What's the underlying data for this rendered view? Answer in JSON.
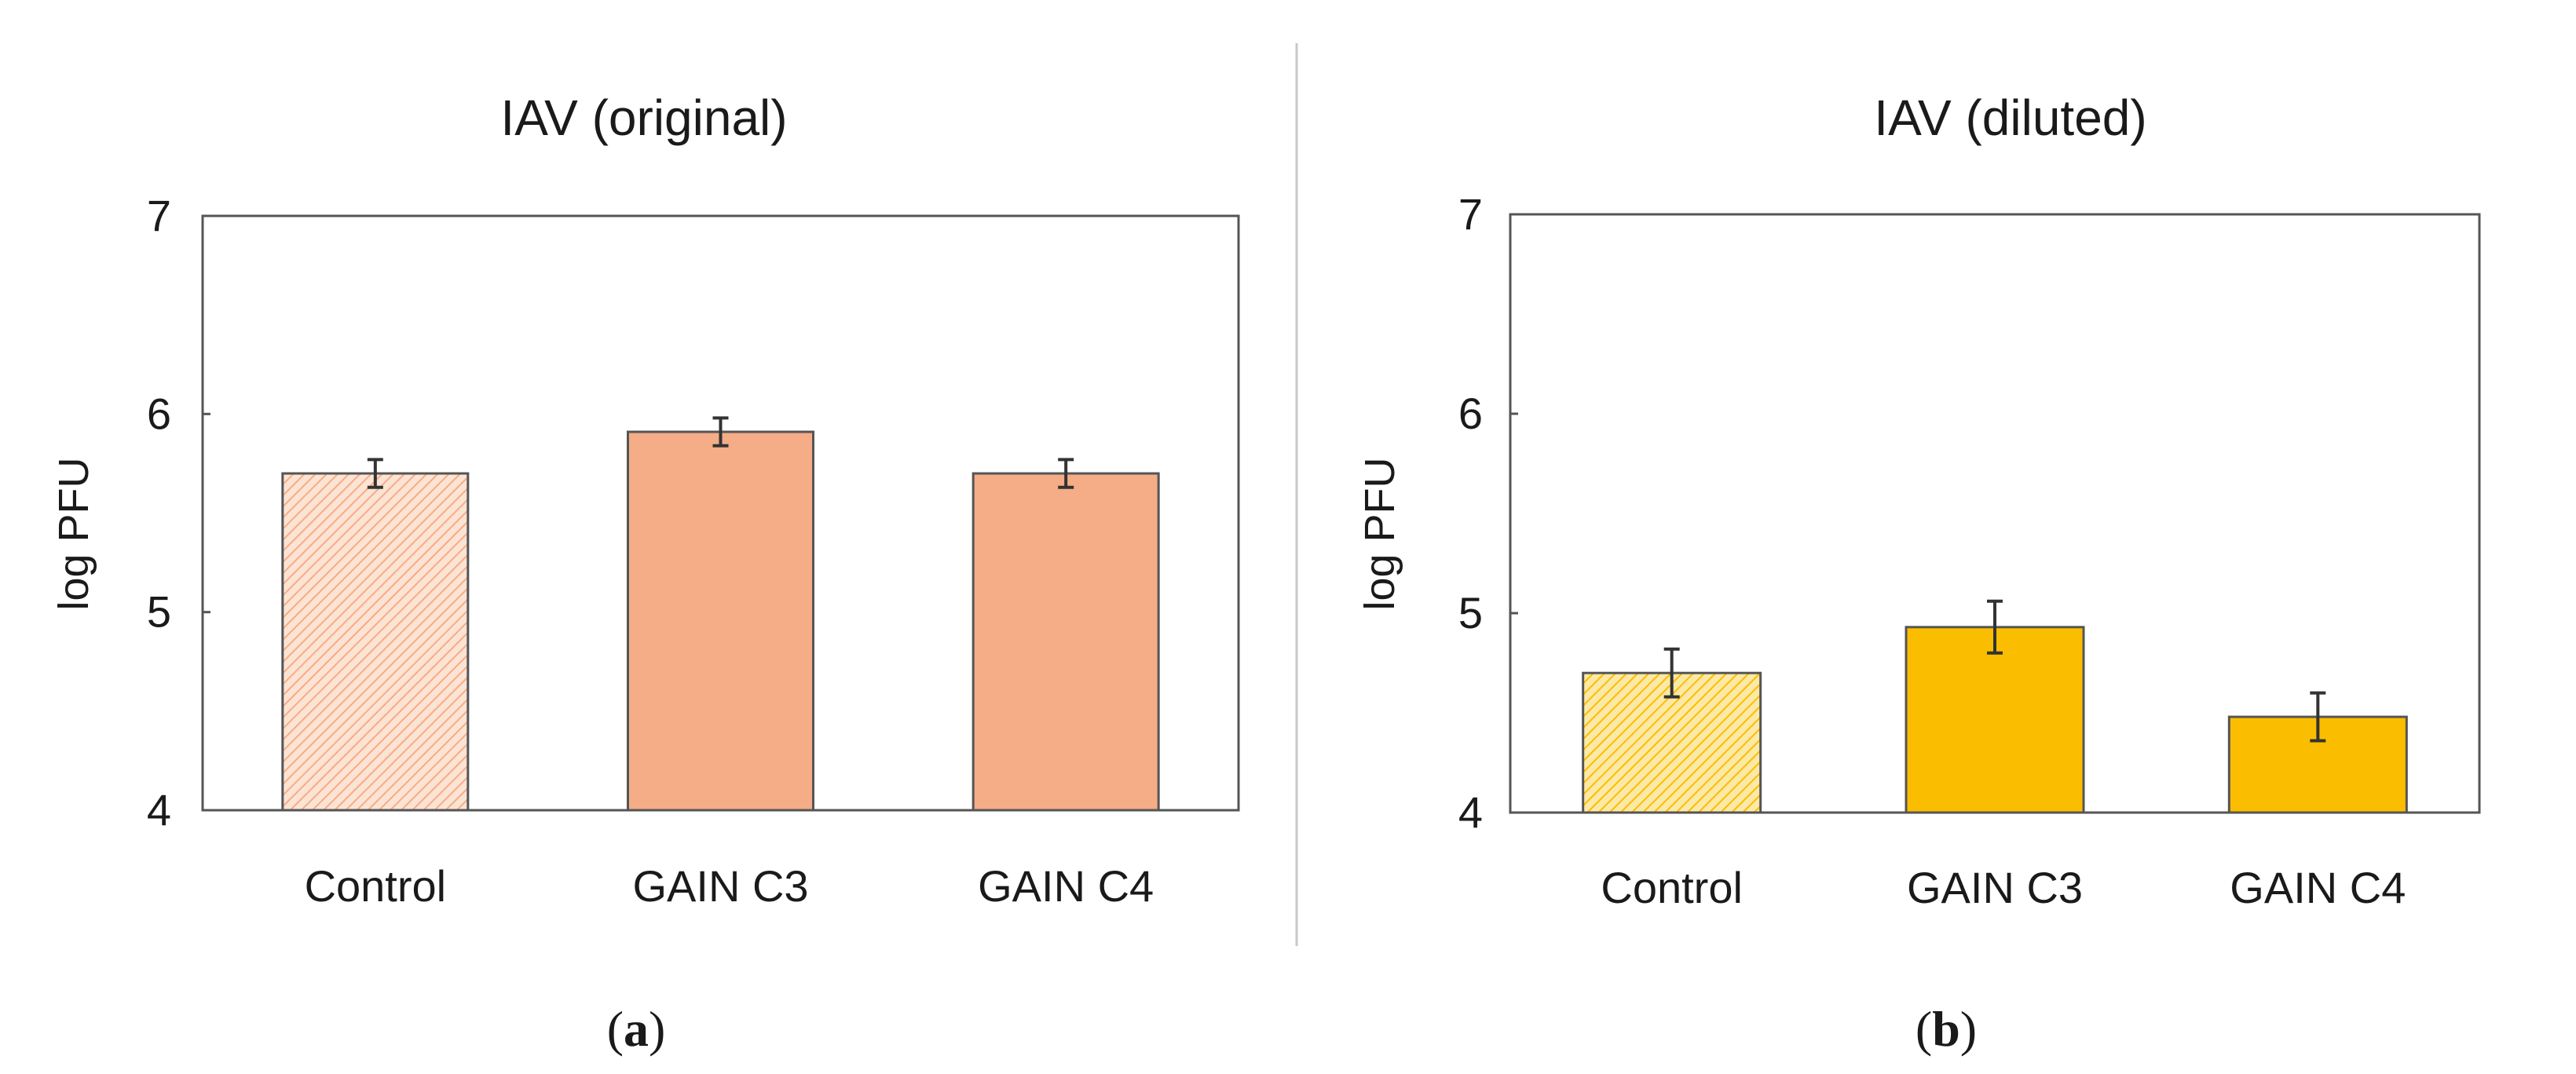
{
  "colors": {
    "panel_a_bar": "#f4ad86",
    "panel_b_bar": "#fbbd00",
    "panel_a_hatch_bg": "#fde3d4",
    "panel_b_hatch_bg": "#fde9a6",
    "bar_edge": "#555555",
    "axis": "#555555",
    "divider": "#c8c8c8",
    "errorbar": "#333333"
  },
  "chart_data": [
    {
      "type": "bar",
      "panel": "a",
      "title": "IAV (original)",
      "ylabel": "log PFU",
      "xlabel": "",
      "ylim": [
        4,
        7
      ],
      "yticks": [
        4,
        5,
        6,
        7
      ],
      "categories": [
        "Control",
        "GAIN C3",
        "GAIN C4"
      ],
      "values": [
        5.7,
        5.91,
        5.7
      ],
      "errors": [
        0.07,
        0.07,
        0.07
      ],
      "hatched": [
        true,
        false,
        false
      ],
      "color_key": "panel_a_bar",
      "hatch_bg_key": "panel_a_hatch_bg",
      "panel_label": {
        "open": "(",
        "letter": "a",
        "close": ")"
      }
    },
    {
      "type": "bar",
      "panel": "b",
      "title": "IAV (diluted)",
      "ylabel": "log PFU",
      "xlabel": "",
      "ylim": [
        4,
        7
      ],
      "yticks": [
        4,
        5,
        6,
        7
      ],
      "categories": [
        "Control",
        "GAIN C3",
        "GAIN C4"
      ],
      "values": [
        4.7,
        4.93,
        4.48
      ],
      "errors": [
        0.12,
        0.13,
        0.12
      ],
      "hatched": [
        true,
        false,
        false
      ],
      "color_key": "panel_b_bar",
      "hatch_bg_key": "panel_b_hatch_bg",
      "panel_label": {
        "open": "(",
        "letter": "b",
        "close": ")"
      }
    }
  ]
}
